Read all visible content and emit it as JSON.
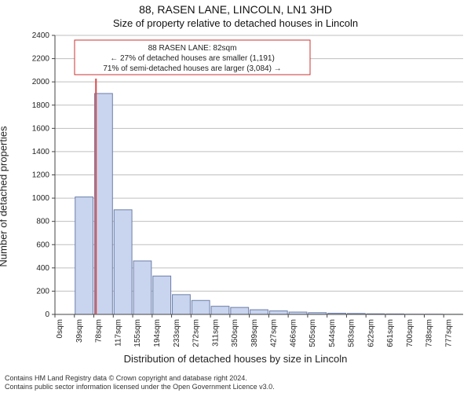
{
  "title_main": "88, RASEN LANE, LINCOLN, LN1 3HD",
  "title_sub": "Size of property relative to detached houses in Lincoln",
  "ylabel": "Number of detached properties",
  "xlabel": "Distribution of detached houses by size in Lincoln",
  "footer_line1": "Contains HM Land Registry data © Crown copyright and database right 2024.",
  "footer_line2": "Contains public sector information licensed under the Open Government Licence v3.0.",
  "callout": {
    "line1": "88 RASEN LANE: 82sqm",
    "line2": "← 27% of detached houses are smaller (1,191)",
    "line3": "71% of semi-detached houses are larger (3,084) →",
    "border_color": "#cc3333",
    "background": "#ffffff",
    "text_color": "#222222",
    "fontsize": 10
  },
  "chart": {
    "type": "bar",
    "categories": [
      "0sqm",
      "39sqm",
      "78sqm",
      "117sqm",
      "155sqm",
      "194sqm",
      "233sqm",
      "272sqm",
      "311sqm",
      "350sqm",
      "389sqm",
      "427sqm",
      "466sqm",
      "505sqm",
      "544sqm",
      "583sqm",
      "622sqm",
      "661sqm",
      "700sqm",
      "738sqm",
      "777sqm"
    ],
    "values": [
      0,
      1010,
      1900,
      900,
      460,
      330,
      170,
      120,
      70,
      60,
      40,
      30,
      20,
      15,
      10,
      8,
      5,
      4,
      2,
      2,
      1
    ],
    "bar_color": "#c9d4ef",
    "bar_border": "#6c7ea8",
    "background_color": "#ffffff",
    "grid_color": "#bfbfbf",
    "axis_color": "#444444",
    "marker_line_color": "#d94a4a",
    "marker_position_sqm": 82,
    "bar_width": 0.92,
    "ylim": [
      0,
      2400
    ],
    "ytick_step": 200,
    "label_fontsize": 11,
    "tick_fontsize": 10,
    "xrange_sqm": [
      0,
      816
    ]
  }
}
